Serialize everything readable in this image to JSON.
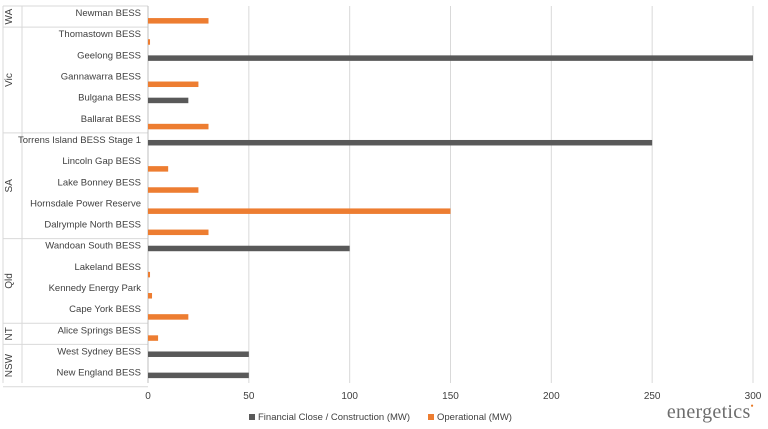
{
  "chart_data": {
    "type": "bar",
    "orientation": "horizontal",
    "title": "",
    "xlabel": "",
    "ylabel": "",
    "xlim": [
      0,
      300
    ],
    "x_ticks": [
      0,
      50,
      100,
      150,
      200,
      250,
      300
    ],
    "grid": true,
    "legend": "bottom",
    "series": [
      {
        "name": "Financial Close / Construction (MW)",
        "color": "#595959"
      },
      {
        "name": "Operational (MW)",
        "color": "#ed7d31"
      }
    ],
    "groups": [
      {
        "label": "WA",
        "items": [
          {
            "category": "Newman BESS",
            "financial": 0,
            "operational": 30
          }
        ]
      },
      {
        "label": "Vic",
        "items": [
          {
            "category": "Thomastown BESS",
            "financial": 0,
            "operational": 1
          },
          {
            "category": "Geelong BESS",
            "financial": 300,
            "operational": 0
          },
          {
            "category": "Gannawarra BESS",
            "financial": 0,
            "operational": 25
          },
          {
            "category": "Bulgana BESS",
            "financial": 20,
            "operational": 0
          },
          {
            "category": "Ballarat BESS",
            "financial": 0,
            "operational": 30
          }
        ]
      },
      {
        "label": "SA",
        "items": [
          {
            "category": "Torrens Island BESS Stage 1",
            "financial": 250,
            "operational": 0
          },
          {
            "category": "Lincoln Gap BESS",
            "financial": 0,
            "operational": 10
          },
          {
            "category": "Lake Bonney BESS",
            "financial": 0,
            "operational": 25
          },
          {
            "category": "Hornsdale Power Reserve",
            "financial": 0,
            "operational": 150
          },
          {
            "category": "Dalrymple North BESS",
            "financial": 0,
            "operational": 30
          }
        ]
      },
      {
        "label": "Qld",
        "items": [
          {
            "category": "Wandoan South BESS",
            "financial": 100,
            "operational": 0
          },
          {
            "category": "Lakeland BESS",
            "financial": 0,
            "operational": 1
          },
          {
            "category": "Kennedy Energy Park",
            "financial": 0,
            "operational": 2
          },
          {
            "category": "Cape York BESS",
            "financial": 0,
            "operational": 20
          }
        ]
      },
      {
        "label": "NT",
        "items": [
          {
            "category": "Alice Springs BESS",
            "financial": 0,
            "operational": 5
          }
        ]
      },
      {
        "label": "NSW",
        "items": [
          {
            "category": "West Sydney BESS",
            "financial": 50,
            "operational": 0
          },
          {
            "category": "New England BESS",
            "financial": 50,
            "operational": 0
          }
        ]
      }
    ]
  },
  "logo_text": "energetics"
}
